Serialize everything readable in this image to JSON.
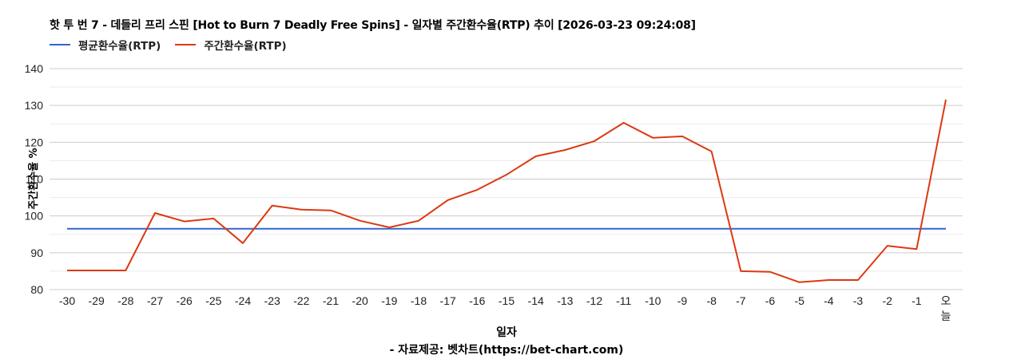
{
  "title": "핫 투 번 7 - 데들리 프리 스핀 [Hot to Burn 7 Deadly Free Spins] - 일자별 주간환수율(RTP) 추이 [2026-03-23 09:24:08]",
  "legend": [
    {
      "label": "평균환수율(RTP)",
      "color": "#3366cc"
    },
    {
      "label": "주간환수율(RTP)",
      "color": "#dc3912"
    }
  ],
  "xaxis": {
    "label": "일자"
  },
  "yaxis": {
    "label": "주간환수율 %"
  },
  "source": "- 자료제공: 벳차트(https://bet-chart.com)",
  "chart_data": {
    "type": "line",
    "title": "핫 투 번 7 - 데들리 프리 스핀 [Hot to Burn 7 Deadly Free Spins] - 일자별 주간환수율(RTP) 추이 [2026-03-23 09:24:08]",
    "xlabel": "일자",
    "ylabel": "주간환수율 %",
    "ylim": [
      80,
      140
    ],
    "yticks": [
      80,
      90,
      100,
      110,
      120,
      130,
      140
    ],
    "grid": true,
    "legend_position": "top",
    "categories": [
      "-30",
      "-29",
      "-28",
      "-27",
      "-26",
      "-25",
      "-24",
      "-23",
      "-22",
      "-21",
      "-20",
      "-19",
      "-18",
      "-17",
      "-16",
      "-15",
      "-14",
      "-13",
      "-12",
      "-11",
      "-10",
      "-9",
      "-8",
      "-7",
      "-6",
      "-5",
      "-4",
      "-3",
      "-2",
      "-1",
      "오늘"
    ],
    "series": [
      {
        "name": "평균환수율(RTP)",
        "color": "#3366cc",
        "values": [
          96.5,
          96.5,
          96.5,
          96.5,
          96.5,
          96.5,
          96.5,
          96.5,
          96.5,
          96.5,
          96.5,
          96.5,
          96.5,
          96.5,
          96.5,
          96.5,
          96.5,
          96.5,
          96.5,
          96.5,
          96.5,
          96.5,
          96.5,
          96.5,
          96.5,
          96.5,
          96.5,
          96.5,
          96.5,
          96.5,
          96.5
        ]
      },
      {
        "name": "주간환수율(RTP)",
        "color": "#dc3912",
        "values": [
          85.2,
          85.2,
          85.2,
          100.8,
          98.5,
          99.3,
          92.6,
          102.8,
          101.7,
          101.5,
          98.7,
          96.9,
          98.7,
          104.3,
          107.1,
          111.2,
          116.2,
          117.9,
          120.3,
          125.3,
          121.2,
          121.6,
          117.5,
          85.0,
          84.8,
          82.0,
          82.6,
          82.6,
          91.9,
          91.0,
          131.6
        ]
      }
    ]
  }
}
